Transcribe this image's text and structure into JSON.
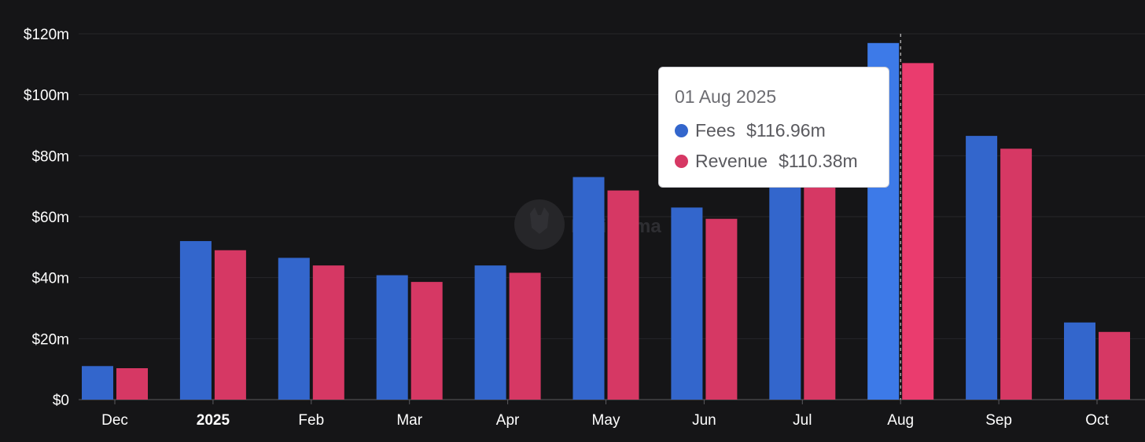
{
  "colors": {
    "background": "#151517",
    "fees": "#3366cc",
    "revenue": "#d63864",
    "fees_highlight": "#3d7ae8",
    "revenue_highlight": "#ea3c6e",
    "grid": "#26262a",
    "axis_text": "#ffffff"
  },
  "chart_data": {
    "type": "bar",
    "categories": [
      "Dec",
      "2025",
      "Feb",
      "Mar",
      "Apr",
      "May",
      "Jun",
      "Jul",
      "Aug",
      "Sep",
      "Oct"
    ],
    "bold_categories": [
      "2025"
    ],
    "series": [
      {
        "name": "Fees",
        "values": [
          11.0,
          52.0,
          46.5,
          40.8,
          44.0,
          73.0,
          63.0,
          85.0,
          116.96,
          86.5,
          25.3
        ]
      },
      {
        "name": "Revenue",
        "values": [
          10.3,
          49.0,
          44.0,
          38.6,
          41.6,
          68.6,
          59.3,
          80.0,
          110.38,
          82.3,
          22.2
        ]
      }
    ],
    "yticks": [
      "$0",
      "$20m",
      "$40m",
      "$60m",
      "$80m",
      "$100m",
      "$120m"
    ],
    "ylim": [
      0,
      120
    ],
    "grid": true,
    "highlight_category": "Aug",
    "tooltip": {
      "date": "01 Aug 2025",
      "rows": [
        {
          "name": "Fees",
          "value": "$116.96m"
        },
        {
          "name": "Revenue",
          "value": "$110.38m"
        }
      ]
    },
    "watermark": "DefiLlama"
  }
}
